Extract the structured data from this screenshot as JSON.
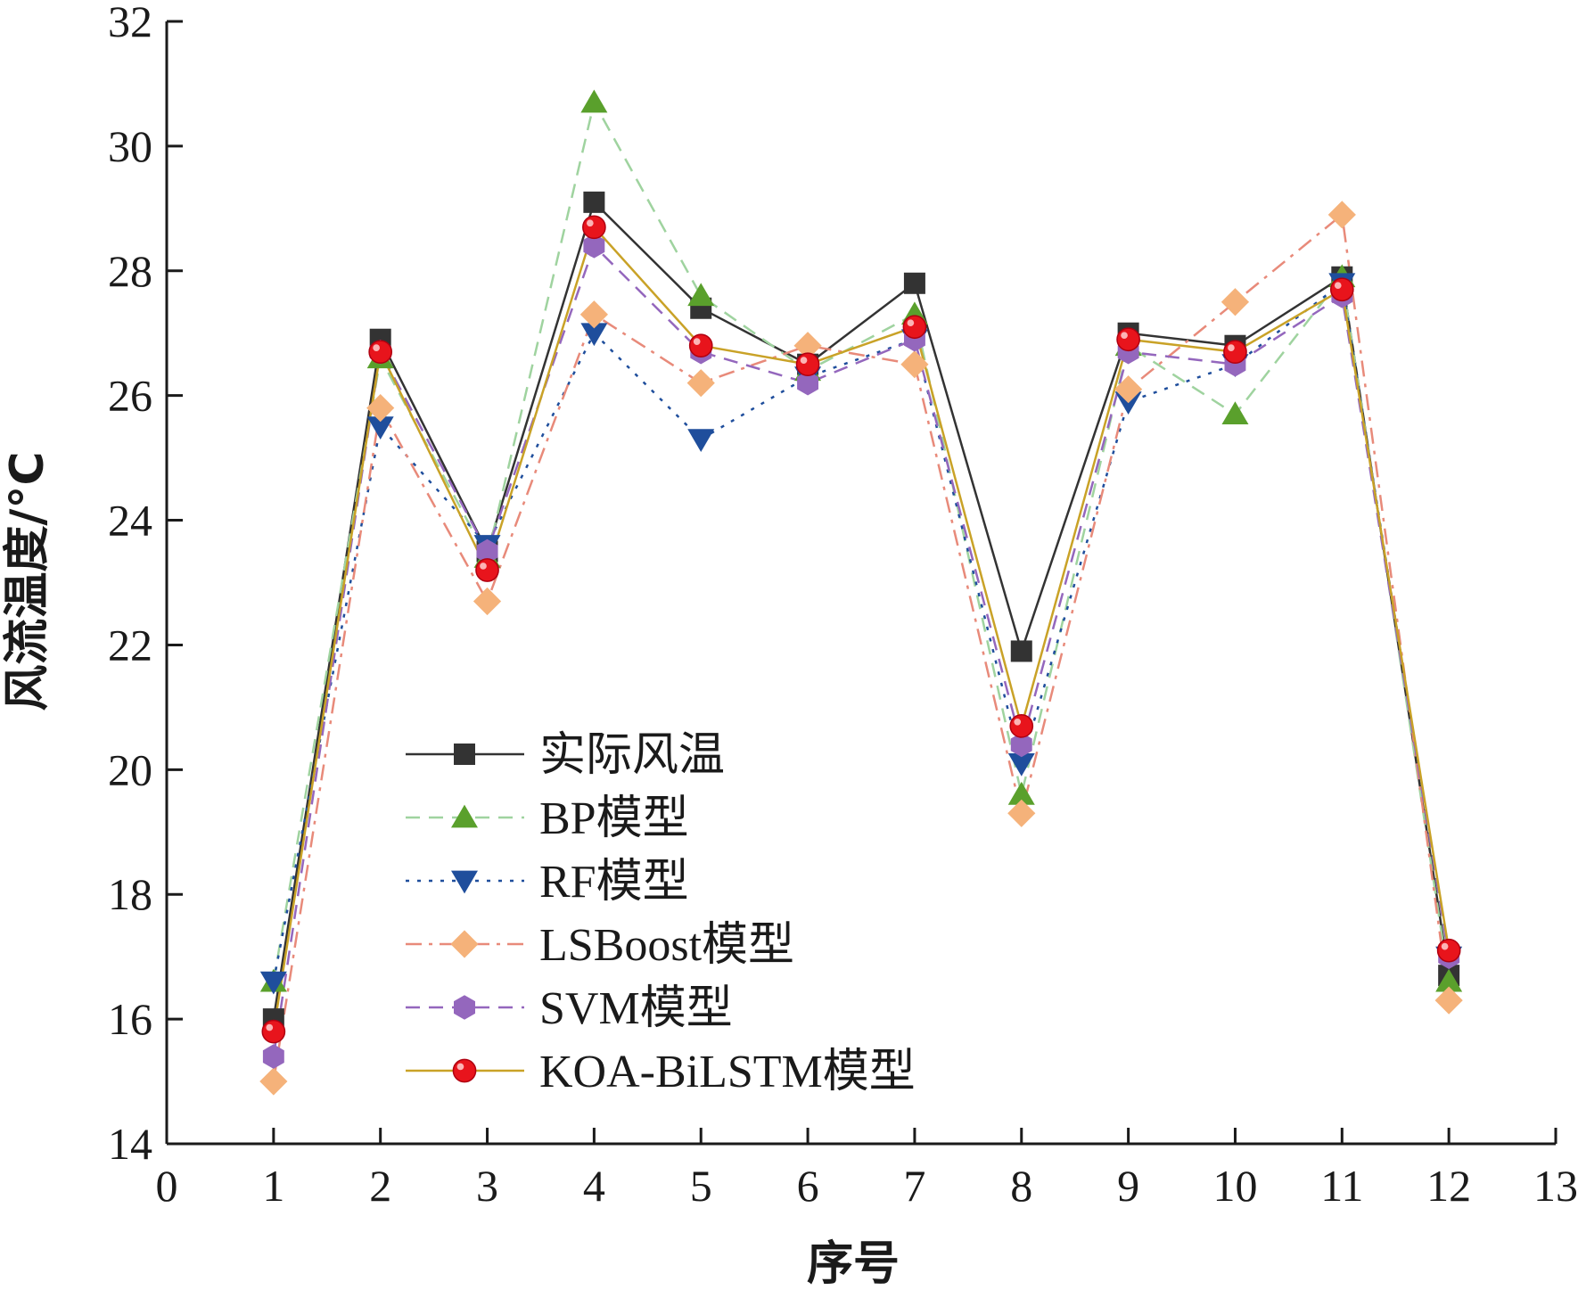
{
  "chart_data": {
    "type": "line",
    "title": "",
    "xlabel": "序号",
    "ylabel": "风流温度/°C",
    "xlim": [
      0,
      13
    ],
    "ylim": [
      14,
      32
    ],
    "xticks": [
      0,
      1,
      2,
      3,
      4,
      5,
      6,
      7,
      8,
      9,
      10,
      11,
      12,
      13
    ],
    "yticks": [
      14,
      16,
      18,
      20,
      22,
      24,
      26,
      28,
      30,
      32
    ],
    "grid": false,
    "legend_position": "bottom-center",
    "x": [
      1,
      2,
      3,
      4,
      5,
      6,
      7,
      8,
      9,
      10,
      11,
      12
    ],
    "series": [
      {
        "name": "实际风温",
        "color": "#333333",
        "marker": "square",
        "dash": "solid",
        "values": [
          16.0,
          26.9,
          23.5,
          29.1,
          27.4,
          26.5,
          27.8,
          21.9,
          27.0,
          26.8,
          27.9,
          16.7
        ]
      },
      {
        "name": "BP模型",
        "color": "#5aa02c",
        "line_color": "#9fd39f",
        "marker": "triangle-up",
        "dash": "dashed",
        "values": [
          16.6,
          26.6,
          23.4,
          30.7,
          27.6,
          26.4,
          27.3,
          19.6,
          26.8,
          25.7,
          27.9,
          16.6
        ]
      },
      {
        "name": "RF模型",
        "color": "#1f4e9c",
        "marker": "triangle-down",
        "dash": "dotted",
        "values": [
          16.6,
          25.5,
          23.6,
          27.0,
          25.3,
          26.3,
          26.9,
          20.1,
          25.9,
          26.5,
          27.8,
          17.0
        ]
      },
      {
        "name": "LSBoost模型",
        "color": "#f5b27a",
        "line_color": "#e88a7a",
        "marker": "diamond",
        "dash": "dashdot",
        "values": [
          15.0,
          25.8,
          22.7,
          27.3,
          26.2,
          26.8,
          26.5,
          19.3,
          26.1,
          27.5,
          28.9,
          16.3
        ]
      },
      {
        "name": "SVM模型",
        "color": "#9467bd",
        "marker": "hexagon",
        "dash": "dashed",
        "values": [
          15.4,
          26.7,
          23.5,
          28.4,
          26.7,
          26.2,
          26.9,
          20.4,
          26.7,
          26.5,
          27.6,
          17.0
        ]
      },
      {
        "name": "KOA-BiLSTM模型",
        "color": "#e8141c",
        "line_color": "#c9a227",
        "marker": "circle",
        "dash": "solid",
        "values": [
          15.8,
          26.7,
          23.2,
          28.7,
          26.8,
          26.5,
          27.1,
          20.7,
          26.9,
          26.7,
          27.7,
          17.1
        ]
      }
    ]
  }
}
